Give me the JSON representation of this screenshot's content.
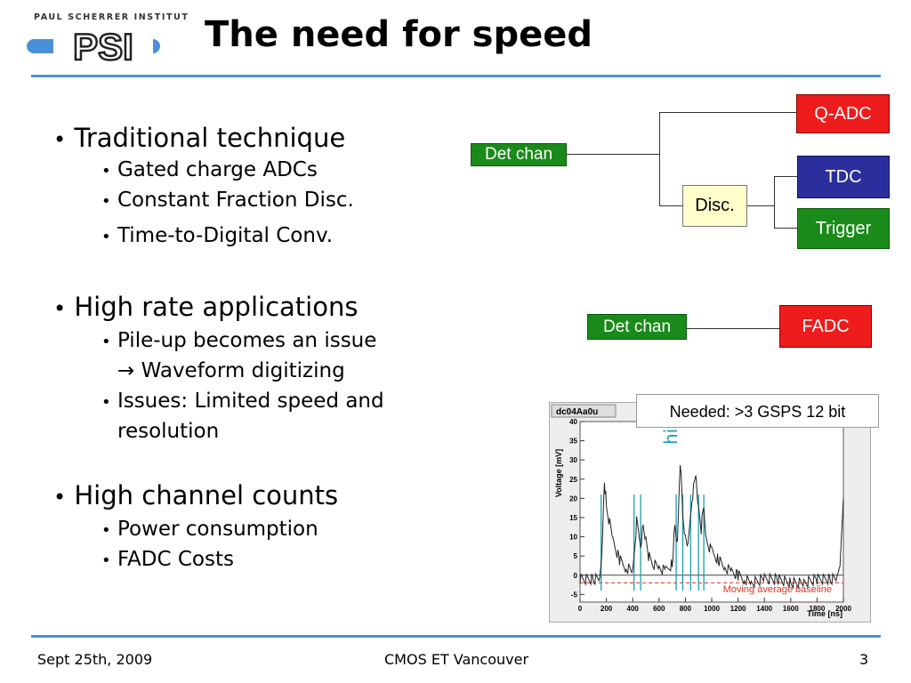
{
  "header": {
    "institute": "PAUL SCHERRER INSTITUT",
    "logo_text": "PSI",
    "title": "The need for speed"
  },
  "bullets": [
    {
      "text": "Traditional technique",
      "sub": [
        "Gated charge ADCs",
        "Constant Fraction Disc.",
        "Time-to-Digital Conv."
      ]
    },
    {
      "text": "High rate applications",
      "sub": [
        "Pile-up becomes an issue",
        "→ Waveform digitizing",
        "Issues: Limited speed and",
        "resolution"
      ]
    },
    {
      "text": "High channel counts",
      "sub": [
        "Power consumption",
        "FADC Costs"
      ]
    }
  ],
  "diagram1": {
    "det": "Det chan",
    "qadc": "Q-ADC",
    "disc": "Disc.",
    "tdc": "TDC",
    "trigger": "Trigger"
  },
  "diagram2": {
    "det": "Det chan",
    "fadc": "FADC"
  },
  "plot": {
    "needed": "Needed: >3 GSPS  12 bit",
    "hits_label": "hits",
    "tab_label": "dc04Aa0u",
    "baseline_label": "Moving average baseline"
  },
  "chart_data": {
    "type": "line",
    "title": "dc04Aa0u",
    "xlabel": "Time [ns]",
    "ylabel": "Voltage [mV]",
    "xlim": [
      0,
      2000
    ],
    "ylim": [
      -7,
      40
    ],
    "x_ticks": [
      "0",
      "200",
      "400",
      "600",
      "800",
      "1000",
      "1200",
      "1400",
      "1600",
      "1800",
      "2000"
    ],
    "y_ticks": [
      "-5",
      "0",
      "5",
      "10",
      "15",
      "20",
      "25",
      "30",
      "35",
      "40"
    ],
    "series": [
      {
        "x": [
          0,
          100,
          150,
          170,
          185,
          200,
          250,
          300,
          350,
          400,
          430,
          460,
          480,
          500,
          520,
          550,
          600,
          650,
          700,
          720,
          740,
          760,
          780,
          800,
          820,
          850,
          880,
          900,
          920,
          940,
          960,
          1000,
          1050,
          1100,
          1150,
          1200,
          1250,
          1300,
          1400,
          1500,
          1600,
          1700,
          1800,
          1900,
          1950,
          1980,
          2000
        ],
        "values": [
          -1,
          -1,
          -1,
          8,
          25,
          18,
          9,
          4,
          2,
          1,
          14,
          8,
          13,
          9,
          5,
          3,
          2,
          1,
          3,
          13,
          8,
          30,
          16,
          10,
          7,
          20,
          26,
          17,
          12,
          18,
          9,
          6,
          4,
          2,
          1,
          0,
          -1,
          -2,
          -1,
          -1,
          -2,
          -2,
          -1,
          -1,
          -1,
          5,
          20
        ]
      }
    ],
    "hit_markers_x": [
      160,
      410,
      460,
      730,
      780,
      840,
      900,
      940
    ],
    "baseline": -2
  }
}
